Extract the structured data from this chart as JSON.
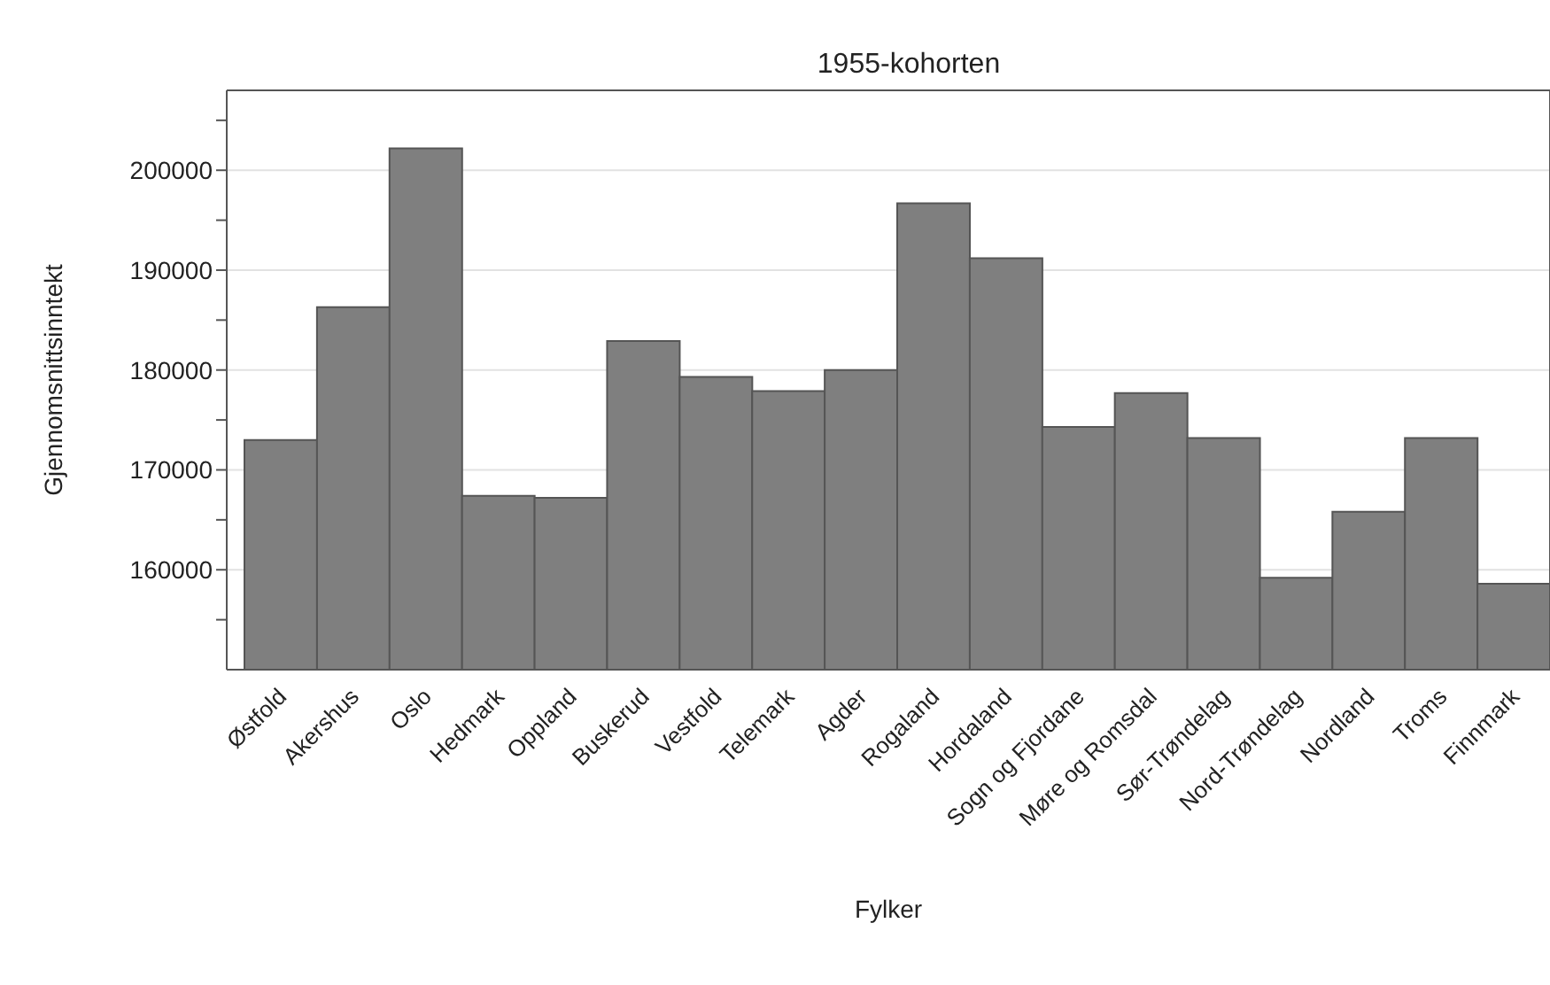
{
  "chart_data": {
    "type": "bar",
    "title": "1955-kohorten",
    "xlabel": "Fylker",
    "ylabel": "Gjennomsnittsinntekt",
    "categories": [
      "Østfold",
      "Akershus",
      "Oslo",
      "Hedmark",
      "Oppland",
      "Buskerud",
      "Vestfold",
      "Telemark",
      "Agder",
      "Rogaland",
      "Hordaland",
      "Sogn og Fjordane",
      "Møre og Romsdal",
      "Sør-Trøndelag",
      "Nord-Trøndelag",
      "Nordland",
      "Troms",
      "Finnmark"
    ],
    "values": [
      173000,
      186300,
      202200,
      167400,
      167200,
      182900,
      179300,
      177900,
      180000,
      196700,
      191200,
      174300,
      177700,
      173200,
      159200,
      165800,
      173200,
      158600
    ],
    "color": "#7f7f7f",
    "ylim": [
      150000,
      208000
    ],
    "yticks": [
      {
        "value": 155000,
        "label": null
      },
      160000,
      {
        "value": 165000,
        "label": null
      },
      170000,
      {
        "value": 175000,
        "label": null
      },
      180000,
      {
        "value": 185000,
        "label": null
      },
      190000,
      {
        "value": 195000,
        "label": null
      },
      200000,
      {
        "value": 205000,
        "label": null
      }
    ],
    "grid": "y",
    "legend": false
  }
}
